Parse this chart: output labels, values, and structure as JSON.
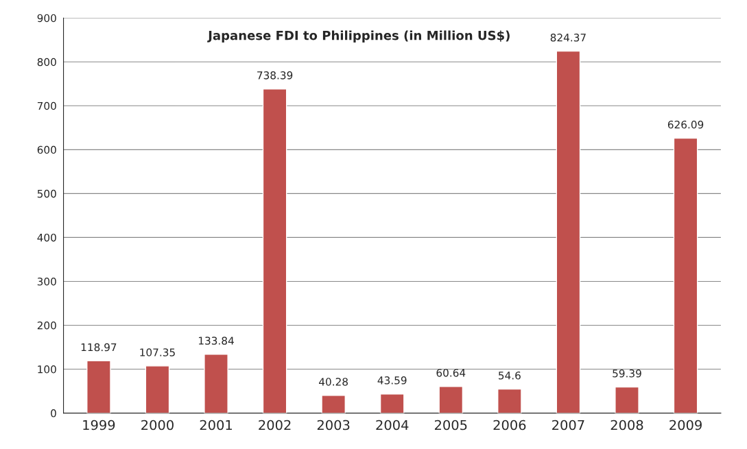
{
  "chart_data": {
    "type": "bar",
    "title": "Japanese FDI to Philippines (in Million US$)",
    "categories": [
      "1999",
      "2000",
      "2001",
      "2002",
      "2003",
      "2004",
      "2005",
      "2006",
      "2007",
      "2008",
      "2009"
    ],
    "values": [
      118.97,
      107.35,
      133.84,
      738.39,
      40.28,
      43.59,
      60.64,
      54.6,
      824.37,
      59.39,
      626.09
    ],
    "value_labels": [
      "118.97",
      "107.35",
      "133.84",
      "738.39",
      "40.28",
      "43.59",
      "60.64",
      "54.6",
      "824.37",
      "59.39",
      "626.09"
    ],
    "color": "#c0504d",
    "ylim": [
      0,
      900
    ],
    "yticks": [
      0,
      100,
      200,
      300,
      400,
      500,
      600,
      700,
      800,
      900
    ],
    "grid": "y"
  }
}
